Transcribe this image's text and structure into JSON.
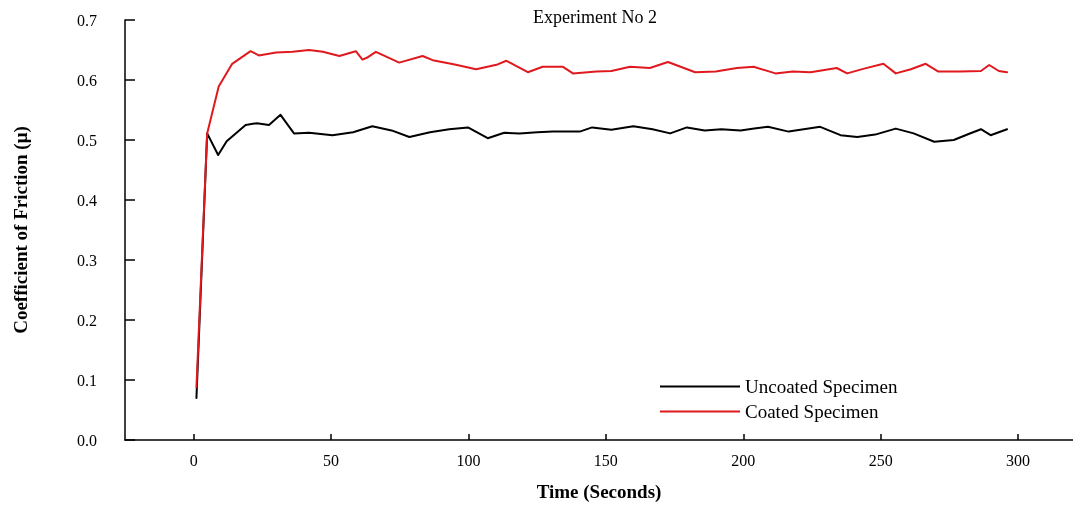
{
  "chart_data": {
    "type": "line",
    "title": "Experiment No 2",
    "xlabel": "Time (Seconds)",
    "ylabel": "Coefficient of Friction (μ)",
    "xlim": [
      -25,
      320
    ],
    "xticks": [
      0,
      50,
      100,
      150,
      200,
      250,
      300
    ],
    "ylim": [
      0,
      0.7
    ],
    "yticks": [
      {
        "value": 0,
        "label": "0.0"
      },
      0.1,
      0.2,
      0.3,
      0.4,
      0.5,
      0.6,
      0.7
    ],
    "grid": false,
    "legend": "bottom right",
    "marker": "none",
    "line_style": "solid",
    "series": [
      {
        "name": "Uncoated Specimen",
        "color": "#000000",
        "x": [
          1,
          4.9,
          8.9,
          12,
          18.9,
          23,
          27.4,
          31.6,
          36.5,
          42,
          50.5,
          58,
          65,
          72,
          78.5,
          86,
          93,
          99.8,
          107,
          113,
          118.6,
          125,
          130.8,
          140.5,
          145,
          152,
          160,
          167,
          173.4,
          179.5,
          186,
          192,
          199,
          204,
          209,
          216.5,
          222,
          228,
          235.4,
          241.5,
          248,
          255.5,
          262,
          269.5,
          276.6,
          282,
          286.5,
          290,
          296
        ],
        "values": [
          0.07,
          0.511,
          0.475,
          0.498,
          0.525,
          0.528,
          0.525,
          0.542,
          0.511,
          0.512,
          0.508,
          0.513,
          0.523,
          0.516,
          0.505,
          0.513,
          0.518,
          0.521,
          0.503,
          0.512,
          0.511,
          0.513,
          0.514,
          0.514,
          0.521,
          0.517,
          0.523,
          0.518,
          0.511,
          0.521,
          0.516,
          0.518,
          0.516,
          0.519,
          0.522,
          0.514,
          0.518,
          0.522,
          0.508,
          0.505,
          0.509,
          0.519,
          0.511,
          0.497,
          0.5,
          0.51,
          0.518,
          0.508,
          0.518
        ]
      },
      {
        "name": "Coated Specimen",
        "color": "#e0191f",
        "x": [
          1,
          4.9,
          9.1,
          14,
          20.7,
          23.7,
          30,
          36,
          42,
          47,
          53,
          59,
          61.4,
          63,
          66.3,
          74.8,
          83.3,
          87,
          95,
          102.8,
          110.6,
          113.8,
          121.6,
          127,
          134.4,
          138,
          146.6,
          152,
          158.8,
          166,
          172.6,
          182.5,
          190,
          197.7,
          203.8,
          211.7,
          218,
          224.5,
          234,
          237.8,
          244,
          251,
          255.5,
          261,
          266.4,
          271,
          279,
          286.5,
          289.5,
          293,
          296
        ],
        "values": [
          0.088,
          0.511,
          0.589,
          0.627,
          0.648,
          0.641,
          0.646,
          0.647,
          0.65,
          0.647,
          0.64,
          0.648,
          0.634,
          0.637,
          0.647,
          0.629,
          0.64,
          0.633,
          0.626,
          0.618,
          0.626,
          0.632,
          0.613,
          0.622,
          0.622,
          0.611,
          0.614,
          0.615,
          0.622,
          0.62,
          0.63,
          0.613,
          0.614,
          0.62,
          0.622,
          0.611,
          0.614,
          0.613,
          0.62,
          0.611,
          0.619,
          0.627,
          0.611,
          0.618,
          0.627,
          0.614,
          0.614,
          0.615,
          0.625,
          0.615,
          0.613
        ]
      }
    ]
  }
}
